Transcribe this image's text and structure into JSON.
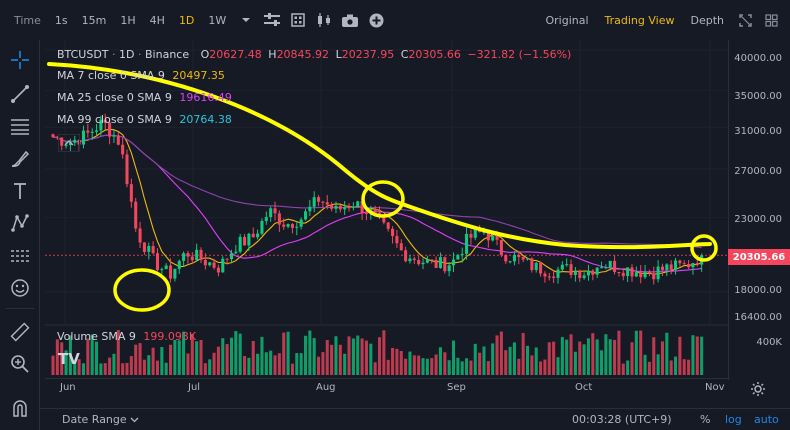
{
  "toolbar": {
    "time_label": "Time",
    "intervals": [
      "1s",
      "15m",
      "1H",
      "4H",
      "1D",
      "1W"
    ],
    "active_interval": "1D",
    "views": [
      "Original",
      "Trading View",
      "Depth"
    ],
    "active_view": "Trading View"
  },
  "legend": {
    "symbol": "BTCUSDT",
    "interval": "1D",
    "exchange": "Binance",
    "open_label": "O",
    "open": "20627.48",
    "high_label": "H",
    "high": "20845.92",
    "low_label": "L",
    "low": "20237.95",
    "close_label": "C",
    "close": "20305.66",
    "change": "−321.82 (−1.56%)",
    "ma7_label": "MA 7 close 0 SMA 9",
    "ma7_value": "20497.35",
    "ma25_label": "MA 25 close 0 SMA 9",
    "ma25_value": "19616.49",
    "ma99_label": "MA 99 close 0 SMA 9",
    "ma99_value": "20764.38",
    "volume_label": "Volume SMA 9",
    "volume_value": "199.093K"
  },
  "price_axis": {
    "ticks": [
      "40000.00",
      "35000.00",
      "31000.00",
      "27000.00",
      "23000.00",
      "18000.00",
      "16400.00"
    ],
    "current_price": "20305.66",
    "volume_tick": "400K"
  },
  "time_axis": {
    "ticks": [
      "Jun",
      "Jul",
      "Aug",
      "Sep",
      "Oct",
      "Nov"
    ]
  },
  "bottom": {
    "date_range": "Date Range",
    "clock": "00:03:28 (UTC+9)",
    "percent": "%",
    "log": "log",
    "auto": "auto"
  },
  "colors": {
    "up": "#0ecb81",
    "down": "#f6465d",
    "ma7": "#f0b90b",
    "ma25": "#e040fb",
    "ma99": "#8e44ad",
    "annotation": "#ffff00",
    "accent": "#f0b90b"
  },
  "chart_data": {
    "type": "candlestick",
    "symbol": "BTCUSDT",
    "interval": "1D",
    "x": [
      "Jun",
      "Jul",
      "Aug",
      "Sep",
      "Oct",
      "Nov"
    ],
    "ylim": [
      16400,
      40000
    ],
    "close_path": [
      30000,
      29500,
      30200,
      31500,
      29500,
      22000,
      20000,
      19000,
      20500,
      20000,
      19500,
      21000,
      21500,
      23500,
      22500,
      23000,
      24500,
      23500,
      24200,
      23500,
      22000,
      20500,
      20000,
      19700,
      19800,
      21500,
      22000,
      20500,
      20000,
      19500,
      19300,
      19400,
      19200,
      19800,
      19500,
      19300,
      19200,
      19500,
      19600,
      20300
    ],
    "ma7": 20497.35,
    "ma25": 19616.49,
    "ma99": 20764.38
  },
  "icons": [
    "crosshair-icon",
    "trendline-icon",
    "horizontal-lines-icon",
    "brush-icon",
    "text-icon",
    "pattern-icon",
    "measure-icon",
    "emoji-icon",
    "ruler-icon",
    "zoom-icon",
    "magnet-icon",
    "settings-icon",
    "fullscreen-icon",
    "screenshot-icon",
    "add-icon",
    "indicators-icon",
    "layout-icon",
    "candle-type-icon",
    "chevron-down-icon"
  ]
}
